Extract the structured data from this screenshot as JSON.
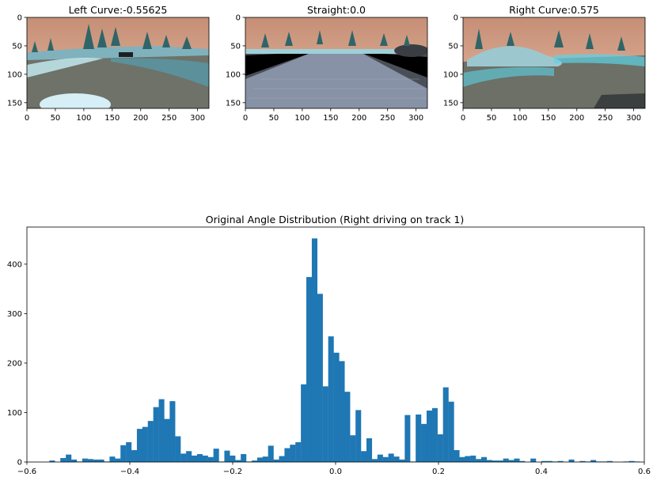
{
  "chart_data": [
    {
      "type": "image",
      "title": "Left Curve:-0.55625",
      "xticks": [
        "0",
        "50",
        "100",
        "150",
        "200",
        "250",
        "300"
      ],
      "yticks": [
        "0",
        "50",
        "100",
        "150"
      ],
      "xlim": [
        0,
        320
      ],
      "ylim": [
        160,
        0
      ],
      "scene": "left",
      "colors": {
        "sky": "#c9987e",
        "road": "#6f7368",
        "tree": "#3d6d72",
        "edge": "#5ed2e6"
      }
    },
    {
      "type": "image",
      "title": "Straight:0.0",
      "xticks": [
        "0",
        "50",
        "100",
        "150",
        "200",
        "250",
        "300"
      ],
      "yticks": [
        "0",
        "50",
        "100",
        "150"
      ],
      "xlim": [
        0,
        320
      ],
      "ylim": [
        160,
        0
      ],
      "scene": "straight",
      "colors": {
        "sky": "#c9987e",
        "road": "#8590a4",
        "tree": "#3d6d72",
        "edge": "#000000"
      }
    },
    {
      "type": "image",
      "title": "Right Curve:0.575",
      "xticks": [
        "0",
        "50",
        "100",
        "150",
        "200",
        "250",
        "300"
      ],
      "yticks": [
        "0",
        "50",
        "100",
        "150"
      ],
      "xlim": [
        0,
        320
      ],
      "ylim": [
        160,
        0
      ],
      "scene": "right",
      "colors": {
        "sky": "#c9987e",
        "road": "#6f7368",
        "tree": "#3d6d72",
        "edge": "#5ed2e6"
      }
    },
    {
      "type": "bar",
      "title": "Original Angle Distribution (Right driving on track 1)",
      "xlim": [
        -0.6,
        0.6
      ],
      "ylim": [
        0,
        475
      ],
      "xticks": [
        -0.6,
        -0.4,
        -0.2,
        0.0,
        0.2,
        0.4,
        0.6
      ],
      "xtick_labels": [
        "−0.6",
        "−0.4",
        "−0.2",
        "0.0",
        "0.2",
        "0.4",
        "0.6"
      ],
      "yticks": [
        0,
        100,
        200,
        300,
        400
      ],
      "ytick_labels": [
        "0",
        "100",
        "200",
        "300",
        "400"
      ],
      "bar_color": "#1f77b4",
      "bin_start": -0.55625,
      "bin_width": 0.010625,
      "values": [
        3,
        0,
        8,
        15,
        5,
        1,
        7,
        6,
        5,
        5,
        1,
        11,
        7,
        34,
        40,
        24,
        67,
        71,
        83,
        111,
        127,
        87,
        123,
        52,
        17,
        22,
        13,
        16,
        13,
        10,
        27,
        1,
        23,
        13,
        4,
        16,
        1,
        3,
        9,
        11,
        33,
        5,
        12,
        28,
        35,
        40,
        157,
        374,
        452,
        340,
        153,
        254,
        221,
        204,
        142,
        54,
        105,
        22,
        48,
        6,
        15,
        10,
        17,
        11,
        5,
        95,
        1,
        96,
        77,
        104,
        109,
        56,
        151,
        122,
        24,
        10,
        12,
        13,
        6,
        10,
        4,
        3,
        3,
        7,
        4,
        7,
        2,
        0,
        7,
        0,
        2,
        2,
        1,
        2,
        0,
        5,
        0,
        2,
        1,
        4,
        1,
        1,
        2,
        0,
        0,
        1,
        2,
        1
      ]
    }
  ]
}
